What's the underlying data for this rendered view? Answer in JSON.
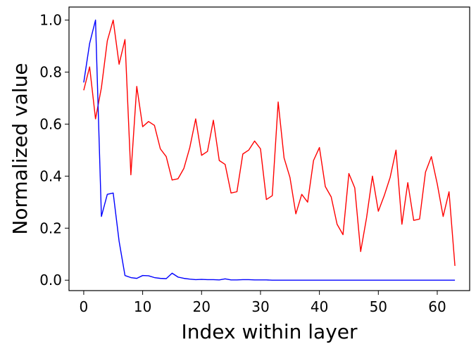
{
  "chart_data": {
    "type": "line",
    "title": "",
    "xlabel": "Index within layer",
    "ylabel": "Normalized value",
    "xlim": [
      -2.5,
      65.5
    ],
    "ylim": [
      -0.04,
      1.05
    ],
    "xticks": [
      0,
      10,
      20,
      30,
      40,
      50,
      60
    ],
    "yticks": [
      0.0,
      0.2,
      0.4,
      0.6,
      0.8,
      1.0
    ],
    "xtick_labels": [
      "0",
      "10",
      "20",
      "30",
      "40",
      "50",
      "60"
    ],
    "ytick_labels": [
      "0.0",
      "0.2",
      "0.4",
      "0.6",
      "0.8",
      "1.0"
    ],
    "grid": false,
    "legend": "none",
    "x": [
      0,
      1,
      2,
      3,
      4,
      5,
      6,
      7,
      8,
      9,
      10,
      11,
      12,
      13,
      14,
      15,
      16,
      17,
      18,
      19,
      20,
      21,
      22,
      23,
      24,
      25,
      26,
      27,
      28,
      29,
      30,
      31,
      32,
      33,
      34,
      35,
      36,
      37,
      38,
      39,
      40,
      41,
      42,
      43,
      44,
      45,
      46,
      47,
      48,
      49,
      50,
      51,
      52,
      53,
      54,
      55,
      56,
      57,
      58,
      59,
      60,
      61,
      62,
      63
    ],
    "series": [
      {
        "color": "#ff0000",
        "values": [
          0.73,
          0.82,
          0.62,
          0.74,
          0.92,
          1.0,
          0.83,
          0.925,
          0.405,
          0.745,
          0.59,
          0.61,
          0.595,
          0.505,
          0.475,
          0.385,
          0.39,
          0.43,
          0.51,
          0.62,
          0.48,
          0.495,
          0.615,
          0.46,
          0.445,
          0.335,
          0.34,
          0.485,
          0.5,
          0.535,
          0.505,
          0.31,
          0.325,
          0.685,
          0.47,
          0.395,
          0.255,
          0.33,
          0.3,
          0.46,
          0.51,
          0.36,
          0.32,
          0.215,
          0.175,
          0.41,
          0.355,
          0.11,
          0.24,
          0.4,
          0.265,
          0.325,
          0.395,
          0.5,
          0.215,
          0.375,
          0.23,
          0.235,
          0.415,
          0.475,
          0.37,
          0.245,
          0.34,
          0.055
        ]
      },
      {
        "color": "#0000ff",
        "values": [
          0.76,
          0.91,
          1.0,
          0.245,
          0.33,
          0.335,
          0.15,
          0.018,
          0.01,
          0.007,
          0.018,
          0.017,
          0.01,
          0.007,
          0.006,
          0.027,
          0.012,
          0.007,
          0.004,
          0.002,
          0.003,
          0.002,
          0.002,
          0.001,
          0.005,
          0.001,
          0.001,
          0.002,
          0.002,
          0.001,
          0.001,
          0.001,
          0.0,
          0.0,
          0.0,
          0.0,
          0.0,
          0.0,
          0.0,
          0.0,
          0.0,
          0.0,
          0.0,
          0.0,
          0.0,
          0.0,
          0.0,
          0.0,
          0.0,
          0.0,
          0.0,
          0.0,
          0.0,
          0.0,
          0.0,
          0.0,
          0.0,
          0.0,
          0.0,
          0.0,
          0.0,
          0.0,
          0.0,
          0.0
        ]
      }
    ]
  }
}
